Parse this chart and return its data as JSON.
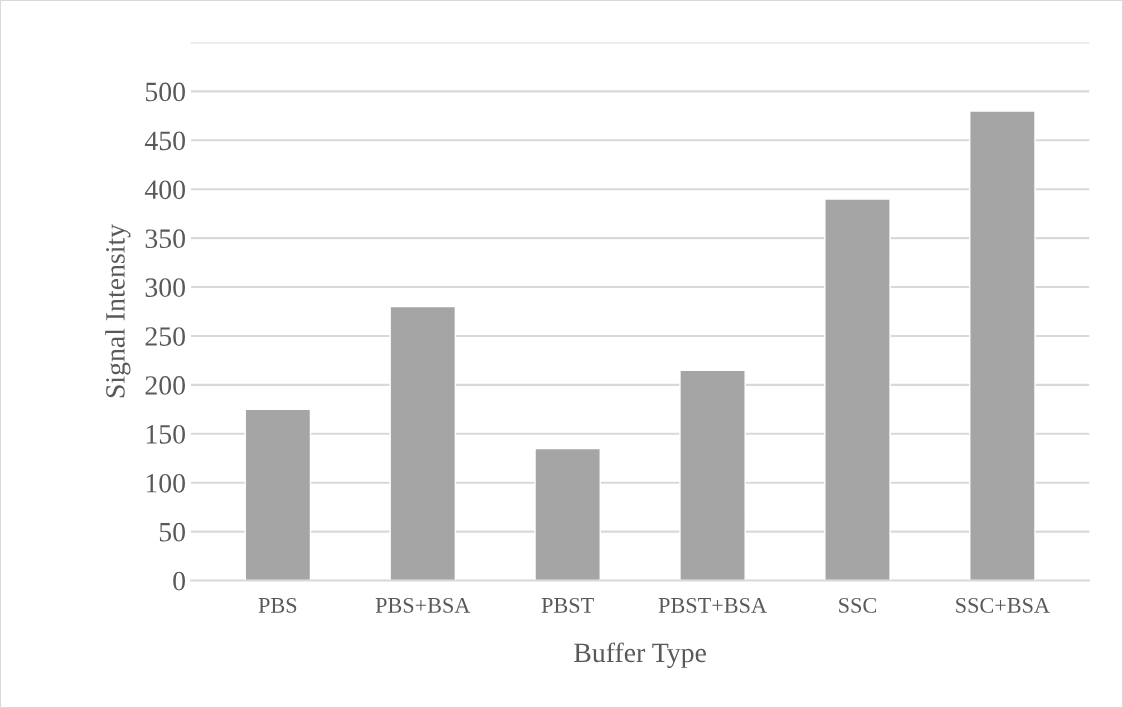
{
  "chart_data": {
    "type": "bar",
    "categories": [
      "PBS",
      "PBS+BSA",
      "PBST",
      "PBST+BSA",
      "SSC",
      "SSC+BSA"
    ],
    "values": [
      175,
      280,
      135,
      215,
      390,
      480
    ],
    "color": "#a5a5a5",
    "xlabel": "Buffer Type",
    "ylabel": "Signal Intensity",
    "ylim": [
      0,
      550
    ],
    "yticks": [
      0,
      50,
      100,
      150,
      200,
      250,
      300,
      350,
      400,
      450,
      500,
      {
        "value": 550,
        "label": null
      }
    ],
    "grid": "y",
    "legend": false
  }
}
